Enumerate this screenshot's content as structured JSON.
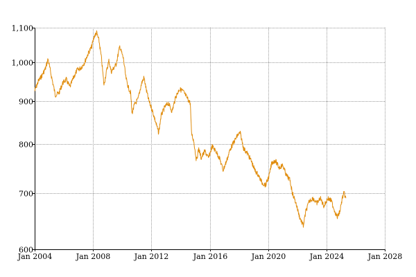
{
  "chart_data": {
    "type": "line",
    "title": "",
    "xlabel": "",
    "ylabel": "",
    "y_scale": "log",
    "xlim": [
      "2004-01-01",
      "2028-01-01"
    ],
    "ylim": [
      600,
      1100
    ],
    "grid": true,
    "line_color": "#e08c0c",
    "x_ticks": [
      {
        "value": "2004-01-01",
        "label": "Jan 2004"
      },
      {
        "value": "2008-01-01",
        "label": "Jan 2008"
      },
      {
        "value": "2012-01-01",
        "label": "Jan 2012"
      },
      {
        "value": "2016-01-01",
        "label": "Jan 2016"
      },
      {
        "value": "2020-01-01",
        "label": "Jan 2020"
      },
      {
        "value": "2024-01-01",
        "label": "Jan 2024"
      },
      {
        "value": "2028-01-01",
        "label": "Jan 2028"
      }
    ],
    "y_ticks": [
      {
        "value": 600,
        "label": "600"
      },
      {
        "value": 700,
        "label": "700"
      },
      {
        "value": 800,
        "label": "800"
      },
      {
        "value": 900,
        "label": "900"
      },
      {
        "value": 1000,
        "label": "1,000"
      },
      {
        "value": 1100,
        "label": "1,100"
      }
    ],
    "series": [
      {
        "name": "",
        "points": [
          [
            "2004-01-01",
            925
          ],
          [
            "2004-04-01",
            950
          ],
          [
            "2004-07-01",
            965
          ],
          [
            "2004-10-01",
            985
          ],
          [
            "2004-12-01",
            1010
          ],
          [
            "2005-02-01",
            975
          ],
          [
            "2005-04-01",
            945
          ],
          [
            "2005-06-01",
            915
          ],
          [
            "2005-09-01",
            920
          ],
          [
            "2005-12-01",
            945
          ],
          [
            "2006-03-01",
            955
          ],
          [
            "2006-06-01",
            935
          ],
          [
            "2006-09-01",
            960
          ],
          [
            "2006-12-01",
            980
          ],
          [
            "2007-03-01",
            985
          ],
          [
            "2007-06-01",
            1000
          ],
          [
            "2007-09-01",
            1025
          ],
          [
            "2007-12-01",
            1045
          ],
          [
            "2008-02-01",
            1075
          ],
          [
            "2008-04-01",
            1085
          ],
          [
            "2008-06-01",
            1060
          ],
          [
            "2008-08-01",
            1010
          ],
          [
            "2008-10-01",
            940
          ],
          [
            "2008-12-01",
            975
          ],
          [
            "2009-02-01",
            1005
          ],
          [
            "2009-04-01",
            975
          ],
          [
            "2009-06-01",
            985
          ],
          [
            "2009-08-01",
            995
          ],
          [
            "2009-11-01",
            1045
          ],
          [
            "2010-02-01",
            1010
          ],
          [
            "2010-04-01",
            960
          ],
          [
            "2010-06-01",
            935
          ],
          [
            "2010-08-01",
            920
          ],
          [
            "2010-09-01",
            870
          ],
          [
            "2010-11-01",
            890
          ],
          [
            "2011-02-01",
            905
          ],
          [
            "2011-05-01",
            945
          ],
          [
            "2011-07-01",
            960
          ],
          [
            "2011-09-01",
            925
          ],
          [
            "2011-11-01",
            900
          ],
          [
            "2012-02-01",
            875
          ],
          [
            "2012-05-01",
            845
          ],
          [
            "2012-07-01",
            825
          ],
          [
            "2012-09-01",
            865
          ],
          [
            "2012-12-01",
            885
          ],
          [
            "2013-03-01",
            895
          ],
          [
            "2013-06-01",
            875
          ],
          [
            "2013-09-01",
            910
          ],
          [
            "2013-12-01",
            930
          ],
          [
            "2014-03-01",
            925
          ],
          [
            "2014-06-01",
            910
          ],
          [
            "2014-09-01",
            895
          ],
          [
            "2014-10-01",
            825
          ],
          [
            "2014-12-01",
            805
          ],
          [
            "2015-02-01",
            765
          ],
          [
            "2015-04-01",
            790
          ],
          [
            "2015-06-01",
            770
          ],
          [
            "2015-09-01",
            785
          ],
          [
            "2015-12-01",
            770
          ],
          [
            "2016-03-01",
            795
          ],
          [
            "2016-06-01",
            785
          ],
          [
            "2016-09-01",
            770
          ],
          [
            "2016-12-01",
            745
          ],
          [
            "2017-03-01",
            765
          ],
          [
            "2017-06-01",
            790
          ],
          [
            "2017-09-01",
            805
          ],
          [
            "2017-12-01",
            820
          ],
          [
            "2018-02-01",
            825
          ],
          [
            "2018-05-01",
            790
          ],
          [
            "2018-08-01",
            780
          ],
          [
            "2018-11-01",
            765
          ],
          [
            "2019-02-01",
            745
          ],
          [
            "2019-05-01",
            735
          ],
          [
            "2019-08-01",
            720
          ],
          [
            "2019-11-01",
            715
          ],
          [
            "2020-02-01",
            735
          ],
          [
            "2020-04-01",
            760
          ],
          [
            "2020-07-01",
            765
          ],
          [
            "2020-10-01",
            750
          ],
          [
            "2021-01-01",
            755
          ],
          [
            "2021-04-01",
            735
          ],
          [
            "2021-07-01",
            725
          ],
          [
            "2021-09-01",
            700
          ],
          [
            "2021-12-01",
            680
          ],
          [
            "2022-03-01",
            655
          ],
          [
            "2022-06-01",
            640
          ],
          [
            "2022-08-01",
            665
          ],
          [
            "2022-11-01",
            685
          ],
          [
            "2023-02-01",
            690
          ],
          [
            "2023-05-01",
            680
          ],
          [
            "2023-08-01",
            690
          ],
          [
            "2023-11-01",
            675
          ],
          [
            "2024-02-01",
            690
          ],
          [
            "2024-05-01",
            685
          ],
          [
            "2024-08-01",
            665
          ],
          [
            "2024-10-01",
            655
          ],
          [
            "2024-12-01",
            665
          ],
          [
            "2025-02-01",
            690
          ],
          [
            "2025-03-15",
            700
          ],
          [
            "2025-05-01",
            690
          ]
        ]
      }
    ]
  }
}
